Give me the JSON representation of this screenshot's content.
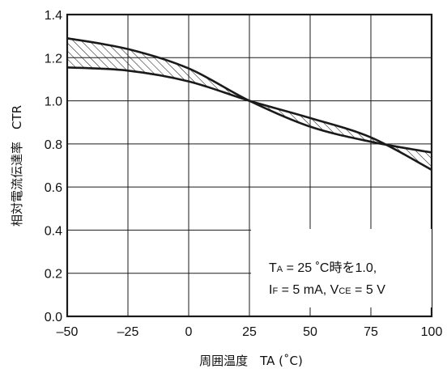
{
  "chart_data": {
    "type": "line",
    "title": "",
    "xlabel": "周囲温度　TA (˚C)",
    "ylabel": "相対電流伝達率　CTR",
    "xlim": [
      -50,
      100
    ],
    "ylim": [
      0,
      1.4
    ],
    "xticks": [
      "–50",
      "–25",
      "0",
      "25",
      "50",
      "75",
      "100"
    ],
    "yticks": [
      "0.0",
      "0.2",
      "0.4",
      "0.6",
      "0.8",
      "1.0",
      "1.2",
      "1.4"
    ],
    "grid": true,
    "band_fill": "hatched",
    "series": [
      {
        "name": "",
        "x": [
          -50,
          -25,
          0,
          25,
          50,
          75,
          100
        ],
        "y": [
          1.29,
          1.24,
          1.15,
          1.0,
          0.88,
          0.81,
          0.76
        ]
      },
      {
        "name": "",
        "x": [
          -50,
          -25,
          0,
          25,
          50,
          75,
          100
        ],
        "y": [
          1.155,
          1.14,
          1.09,
          1.0,
          0.92,
          0.83,
          0.68
        ]
      }
    ],
    "annotation": {
      "line1": [
        "T",
        "A",
        " = 25 ˚C時を1.0,"
      ],
      "line2": [
        "I",
        "F",
        " = 5 mA, V",
        "CE",
        " = 5 V"
      ]
    },
    "colors": {
      "line": "#1a1a1a",
      "grid": "#1a1a1a",
      "background": "#ffffff"
    }
  }
}
